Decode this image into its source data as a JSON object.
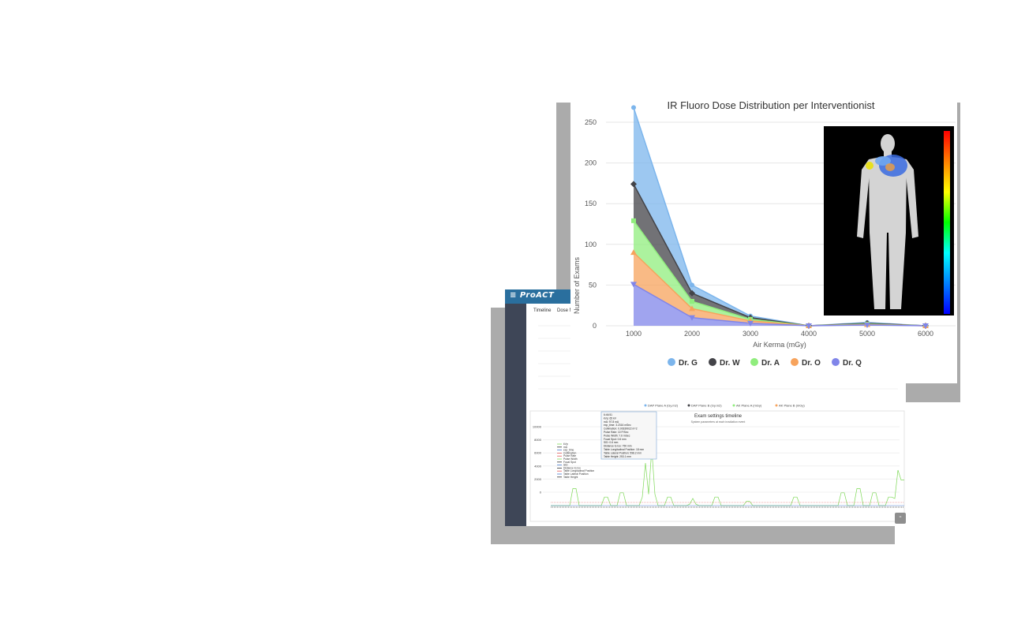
{
  "app": {
    "logo_text": "≡ ProACT",
    "tabs": [
      "Timeline",
      "Dose M"
    ]
  },
  "back_chart": {
    "legend_top": [
      "DAP Plane A (Gy.m2)",
      "DAP Plane B (Gy.m2)",
      "AK Plane A (mGy)",
      "AK Plane B (mGy)"
    ],
    "title": "Exam settings timeline",
    "subtitle": "System parameters at each irradiation event",
    "legend_side": [
      "kVp",
      "mA",
      "exp_time",
      "Collimation",
      "Pulse Rate",
      "Pulse Width",
      "Focal Spot",
      "SID",
      "Distance to Iso",
      "Table Longitudinal Position",
      "Table Lateral Position",
      "Table Height"
    ],
    "tooltip": [
      "6:46:51",
      "kVp: 65 kV",
      "mA: 97.8 mA",
      "exp_time: 3.2316 mSec",
      "Collimation: 0.00339022 m^2",
      "Pulse Rate: 10 P/Sec",
      "Pulse Width: 7.6 mSec",
      "Focal Spot: 0.6 mm",
      "SID: 0.6 mm",
      "Distance to Iso: 750 mm",
      "Table Longitudinal Position: 18 mm",
      "Table Lateral Position: 598.2 mm",
      "Table Height: 253.1 mm"
    ],
    "y_ticks": [
      "10000",
      "8000",
      "6000",
      "4000",
      "2000",
      "0"
    ],
    "colors": {
      "green": "#7ed957",
      "red": "#e05a5a",
      "blue": "#4a7bd0",
      "dark": "#333333"
    }
  },
  "chart_data": {
    "type": "area",
    "title": "IR Fluoro Dose Distribution per Interventionist",
    "xlabel": "Air Kerma (mGy)",
    "ylabel": "Number of Exams",
    "categories": [
      "1000",
      "2000",
      "3000",
      "4000",
      "5000",
      "6000"
    ],
    "ylim": [
      0,
      250
    ],
    "y_ticks": [
      0,
      50,
      100,
      150,
      200,
      250
    ],
    "grid": true,
    "stacked": true,
    "legend_position": "bottom",
    "series": [
      {
        "name": "Dr. G",
        "values": [
          94,
          10,
          2,
          0,
          1,
          0
        ],
        "color": "#7cb5ec",
        "marker": "circle"
      },
      {
        "name": "Dr. W",
        "values": [
          45,
          10,
          2,
          0,
          1,
          0
        ],
        "color": "#434348",
        "marker": "diamond"
      },
      {
        "name": "Dr. A",
        "values": [
          39,
          9,
          2,
          0,
          0.5,
          0
        ],
        "color": "#90ed7d",
        "marker": "square"
      },
      {
        "name": "Dr. O",
        "values": [
          39,
          11,
          3,
          0,
          0.5,
          0
        ],
        "color": "#f7a35c",
        "marker": "triangle"
      },
      {
        "name": "Dr. Q",
        "values": [
          51,
          10,
          3,
          0,
          1,
          0
        ],
        "color": "#8085e9",
        "marker": "triangle-down"
      }
    ]
  },
  "body_map": {
    "icon": "body-dose-map-icon",
    "colorbar": [
      "#ff0000",
      "#ff8000",
      "#ffff00",
      "#00ff00",
      "#00ffff",
      "#0080ff",
      "#0000ff"
    ]
  },
  "minimize_label": "-"
}
